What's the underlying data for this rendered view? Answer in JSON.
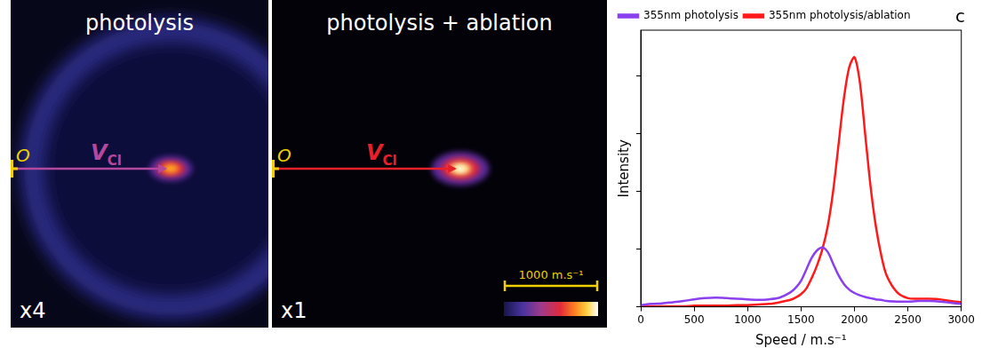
{
  "images": [
    {
      "title": "photolysis",
      "gain": "x4",
      "origin": "O",
      "vector": {
        "label": "V",
        "subscript": "Cl"
      },
      "spot_speed": 1700,
      "ring_speed": 1550,
      "color": "#b4479e"
    },
    {
      "title": "photolysis + ablation",
      "gain": "x1",
      "origin": "O",
      "vector": {
        "label": "V",
        "subscript": "Cl"
      },
      "spot_speed": 2000,
      "color": "#e8202a",
      "scale_bar": {
        "value": 1000,
        "label": "1000 m.s⁻¹"
      }
    }
  ],
  "chart_data": {
    "type": "line",
    "label": "c",
    "x_label": "Speed / m.s⁻¹",
    "y_label": "Intensity",
    "x": [
      0,
      100,
      200,
      300,
      400,
      500,
      600,
      700,
      800,
      900,
      1000,
      1100,
      1200,
      1300,
      1400,
      1450,
      1500,
      1550,
      1600,
      1650,
      1700,
      1750,
      1800,
      1850,
      1900,
      1950,
      2000,
      2050,
      2100,
      2150,
      2200,
      2250,
      2300,
      2400,
      2500,
      2600,
      2700,
      2800,
      2900,
      3000
    ],
    "series": [
      {
        "name": "355nm photolysis",
        "color": "#8a3ff0",
        "values": [
          0.03,
          0.05,
          0.06,
          0.08,
          0.1,
          0.13,
          0.15,
          0.16,
          0.15,
          0.14,
          0.13,
          0.12,
          0.13,
          0.16,
          0.25,
          0.33,
          0.45,
          0.65,
          0.85,
          0.98,
          1.03,
          0.95,
          0.75,
          0.55,
          0.4,
          0.3,
          0.24,
          0.2,
          0.17,
          0.15,
          0.13,
          0.12,
          0.1,
          0.09,
          0.09,
          0.1,
          0.1,
          0.09,
          0.07,
          0.05
        ]
      },
      {
        "name": "355nm photolysis/ablation",
        "color": "#ff1a1a",
        "values": [
          0.01,
          0.01,
          0.01,
          0.01,
          0.01,
          0.02,
          0.02,
          0.02,
          0.02,
          0.03,
          0.03,
          0.04,
          0.05,
          0.08,
          0.12,
          0.16,
          0.22,
          0.32,
          0.5,
          0.72,
          1.0,
          1.4,
          2.0,
          2.8,
          3.6,
          4.15,
          4.33,
          3.9,
          3.0,
          2.1,
          1.4,
          0.9,
          0.55,
          0.25,
          0.15,
          0.14,
          0.14,
          0.13,
          0.1,
          0.08
        ]
      }
    ],
    "xlim": [
      0,
      3000
    ],
    "xticks": [
      0,
      500,
      1000,
      1500,
      2000,
      2500,
      3000
    ],
    "ylim": [
      0,
      4.8
    ],
    "yticks": [
      0,
      1,
      2,
      3,
      4
    ],
    "tick_labels": "x",
    "grid": false,
    "legend": "upper left"
  }
}
